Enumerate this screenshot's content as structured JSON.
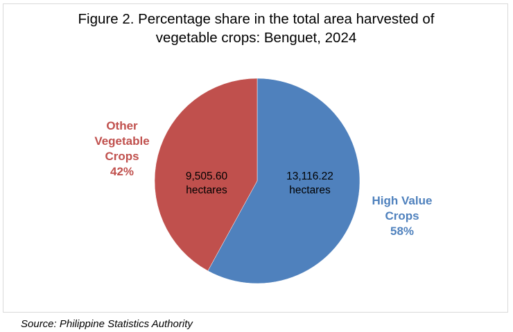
{
  "chart_data": {
    "type": "pie",
    "title_lines": [
      "Figure 2. Percentage share in the total area harvested of",
      "vegetable crops: Benguet, 2024"
    ],
    "slices": [
      {
        "label_lines": [
          "High Value",
          "Crops"
        ],
        "percent_label": "58%",
        "percent": 58,
        "value_label": "13,116.22",
        "value": 13116.22,
        "unit_label": "hectares",
        "color": "#4f81bd"
      },
      {
        "label_lines": [
          "Other",
          "Vegetable",
          "Crops"
        ],
        "percent_label": "42%",
        "percent": 42,
        "value_label": "9,505.60",
        "value": 9505.6,
        "unit_label": "hectares",
        "color": "#c0504d"
      }
    ],
    "start": "12 o'clock",
    "direction": "clockwise",
    "legend": "none"
  },
  "footer": {
    "source": "Source: Philippine Statistics Authority"
  }
}
